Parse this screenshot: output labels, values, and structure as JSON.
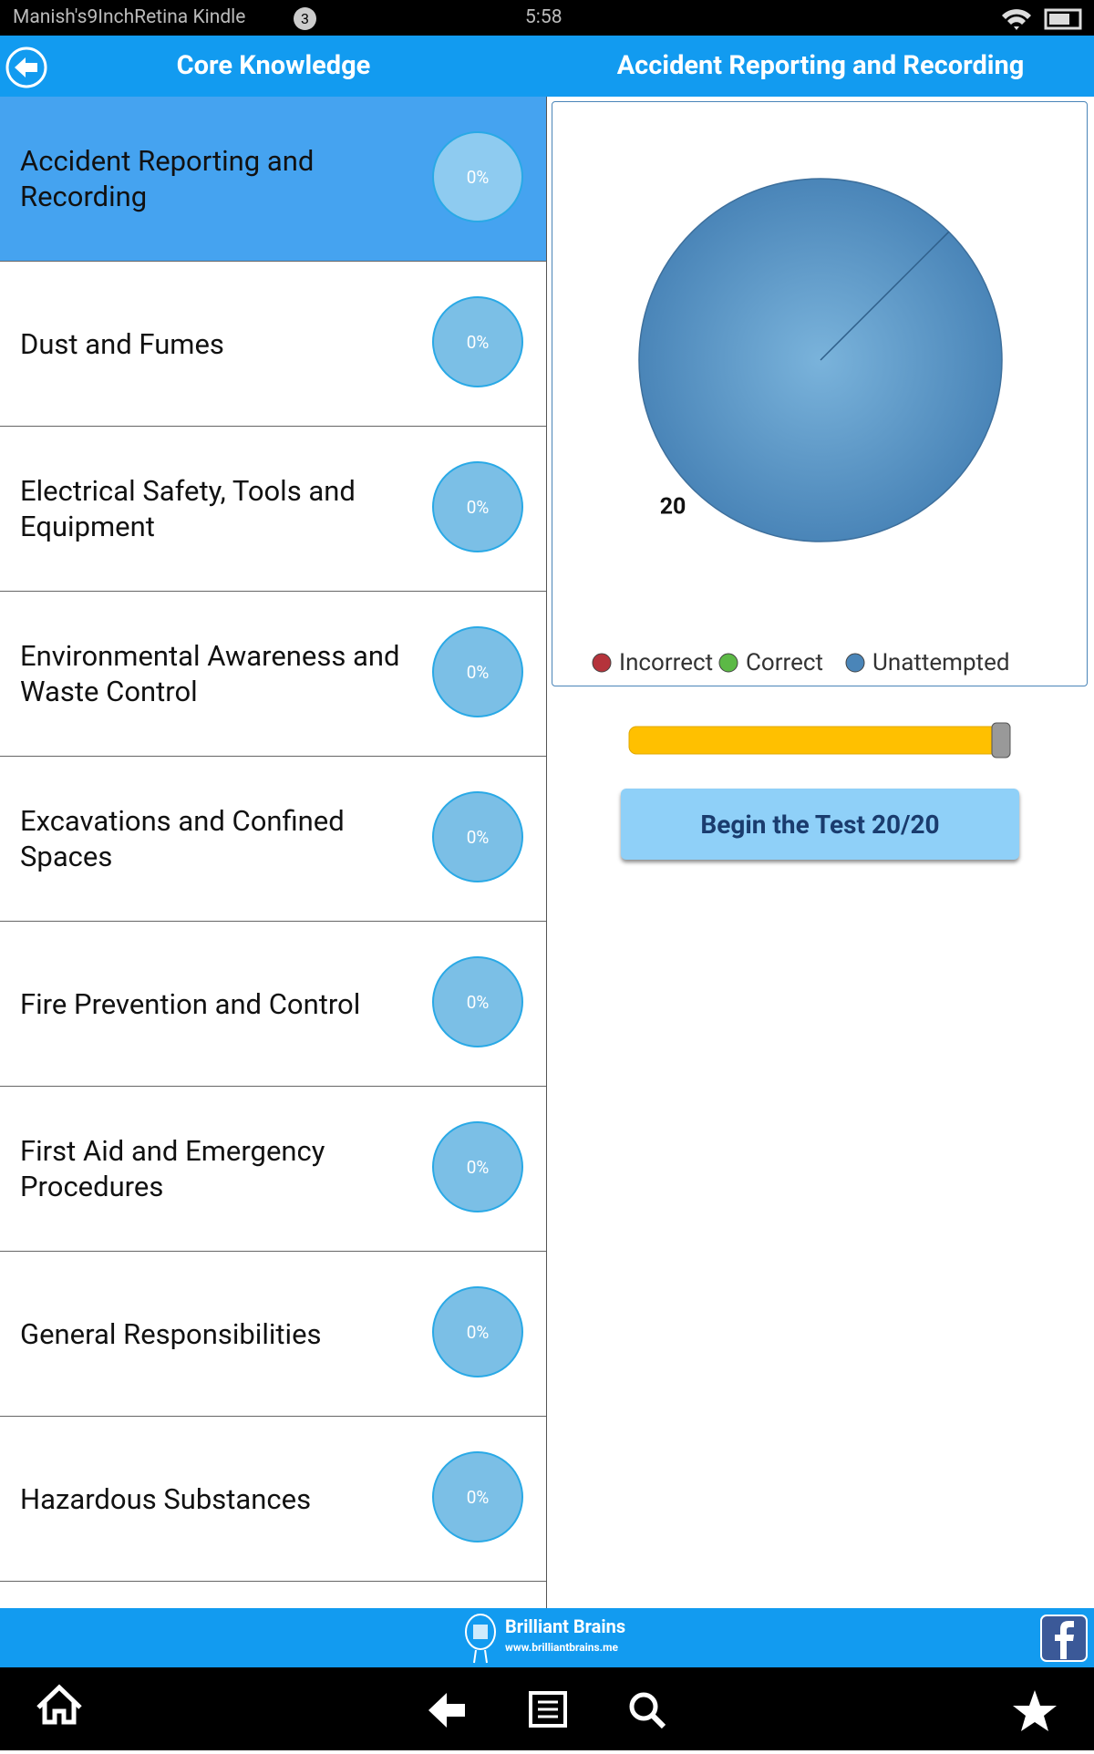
{
  "status_bar": {
    "device": "Manish's9InchRetina Kindle",
    "notifications": "3",
    "time": "5:58"
  },
  "header": {
    "left_title": "Core Knowledge",
    "right_title": "Accident Reporting and Recording"
  },
  "topics": [
    {
      "name": "Accident Reporting and Recording",
      "progress": "0%"
    },
    {
      "name": "Dust and Fumes",
      "progress": "0%"
    },
    {
      "name": "Electrical Safety, Tools and Equipment",
      "progress": "0%"
    },
    {
      "name": "Environmental Awareness and Waste Control",
      "progress": "0%"
    },
    {
      "name": "Excavations and Confined Spaces",
      "progress": "0%"
    },
    {
      "name": "Fire Prevention and Control",
      "progress": "0%"
    },
    {
      "name": "First Aid and Emergency Procedures",
      "progress": "0%"
    },
    {
      "name": "General Responsibilities",
      "progress": "0%"
    },
    {
      "name": "Hazardous Substances",
      "progress": "0%"
    }
  ],
  "chart_data": {
    "type": "pie",
    "categories": [
      "Incorrect",
      "Correct",
      "Unattempted"
    ],
    "values": [
      0,
      0,
      20
    ],
    "colors": [
      "#b5333b",
      "#5cb946",
      "#4a85b8"
    ]
  },
  "start_button": "Begin the Test 20/20",
  "footer": {
    "brand": "Brilliant Brains",
    "url": "www.brilliantbrains.me"
  }
}
